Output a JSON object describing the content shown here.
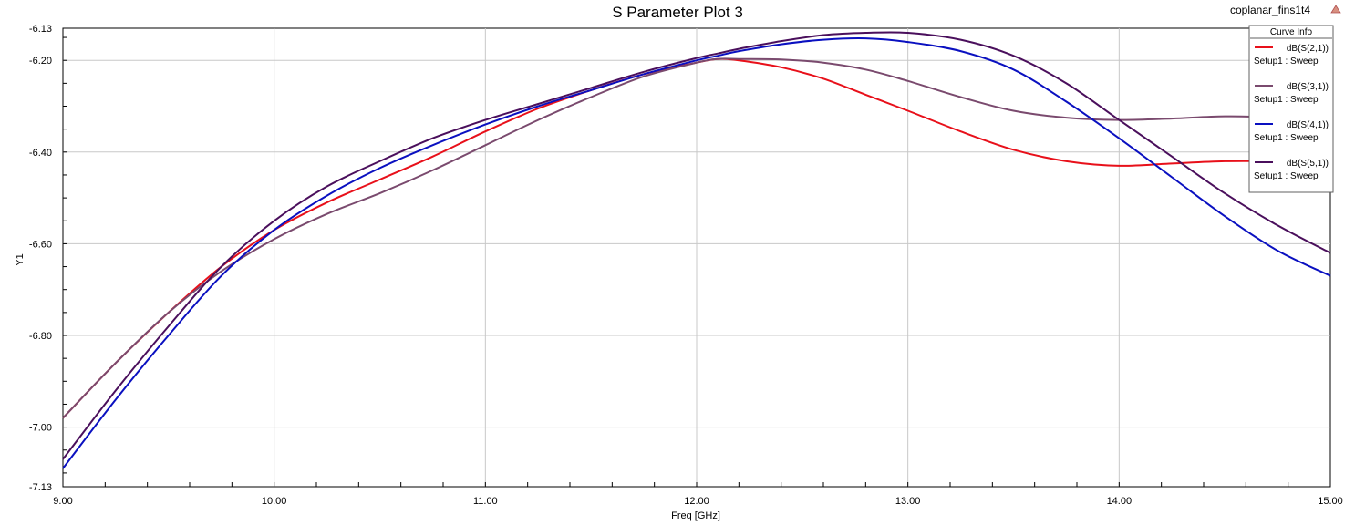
{
  "chart_data": {
    "type": "line",
    "title": "S Parameter Plot 3",
    "project_name": "coplanar_fins1t4",
    "xlabel": "Freq [GHz]",
    "ylabel": "Y1",
    "xlim": [
      9.0,
      15.0
    ],
    "ylim": [
      -7.13,
      -6.13
    ],
    "x_ticks": [
      "9.00",
      "10.00",
      "11.00",
      "12.00",
      "13.00",
      "14.00",
      "15.00"
    ],
    "y_ticks": [
      "-6.13",
      "-6.20",
      "-6.40",
      "-6.60",
      "-6.80",
      "-7.00",
      "-7.13"
    ],
    "grid": true,
    "legend": {
      "title": "Curve Info",
      "placement": "top-right"
    },
    "series": [
      {
        "name": "dB(S(2,1))",
        "sweep": "Setup1 : Sweep",
        "color": "#e8101a",
        "x": [
          9.0,
          9.25,
          9.5,
          9.75,
          10.0,
          10.25,
          10.5,
          10.75,
          11.0,
          11.25,
          11.5,
          11.75,
          12.0,
          12.1,
          12.2,
          12.4,
          12.6,
          12.8,
          13.0,
          13.25,
          13.5,
          13.75,
          14.0,
          14.25,
          14.5,
          14.75,
          15.0
        ],
        "values": [
          -6.98,
          -6.86,
          -6.75,
          -6.65,
          -6.57,
          -6.51,
          -6.46,
          -6.41,
          -6.355,
          -6.305,
          -6.265,
          -6.23,
          -6.205,
          -6.197,
          -6.2,
          -6.215,
          -6.24,
          -6.275,
          -6.31,
          -6.355,
          -6.395,
          -6.42,
          -6.43,
          -6.425,
          -6.42,
          -6.42,
          -6.42
        ]
      },
      {
        "name": "dB(S(3,1))",
        "sweep": "Setup1 : Sweep",
        "color": "#7a4a6e",
        "x": [
          9.0,
          9.25,
          9.5,
          9.75,
          10.0,
          10.25,
          10.5,
          10.75,
          11.0,
          11.25,
          11.5,
          11.75,
          12.0,
          12.1,
          12.2,
          12.4,
          12.6,
          12.8,
          13.0,
          13.25,
          13.5,
          13.75,
          14.0,
          14.25,
          14.5,
          14.75,
          15.0
        ],
        "values": [
          -6.98,
          -6.86,
          -6.75,
          -6.66,
          -6.59,
          -6.535,
          -6.49,
          -6.44,
          -6.385,
          -6.33,
          -6.28,
          -6.235,
          -6.205,
          -6.197,
          -6.197,
          -6.198,
          -6.205,
          -6.22,
          -6.245,
          -6.28,
          -6.31,
          -6.325,
          -6.33,
          -6.327,
          -6.322,
          -6.325,
          -6.335
        ]
      },
      {
        "name": "dB(S(4,1))",
        "sweep": "Setup1 : Sweep",
        "color": "#0a10c0",
        "x": [
          9.0,
          9.25,
          9.5,
          9.75,
          10.0,
          10.25,
          10.5,
          10.75,
          11.0,
          11.25,
          11.5,
          11.75,
          12.0,
          12.1,
          12.2,
          12.4,
          12.6,
          12.8,
          13.0,
          13.25,
          13.5,
          13.75,
          14.0,
          14.25,
          14.5,
          14.75,
          15.0
        ],
        "values": [
          -7.09,
          -6.94,
          -6.8,
          -6.67,
          -6.57,
          -6.495,
          -6.435,
          -6.385,
          -6.34,
          -6.3,
          -6.265,
          -6.23,
          -6.2,
          -6.19,
          -6.18,
          -6.165,
          -6.155,
          -6.152,
          -6.16,
          -6.18,
          -6.22,
          -6.29,
          -6.37,
          -6.455,
          -6.54,
          -6.615,
          -6.67
        ]
      },
      {
        "name": "dB(S(5,1))",
        "sweep": "Setup1 : Sweep",
        "color": "#4a0f5c",
        "x": [
          9.0,
          9.25,
          9.5,
          9.75,
          10.0,
          10.25,
          10.5,
          10.75,
          11.0,
          11.25,
          11.5,
          11.75,
          12.0,
          12.1,
          12.2,
          12.4,
          12.6,
          12.8,
          13.0,
          13.25,
          13.5,
          13.75,
          14.0,
          14.25,
          14.5,
          14.75,
          15.0
        ],
        "values": [
          -7.07,
          -6.92,
          -6.78,
          -6.65,
          -6.55,
          -6.475,
          -6.42,
          -6.37,
          -6.33,
          -6.295,
          -6.26,
          -6.225,
          -6.195,
          -6.185,
          -6.175,
          -6.158,
          -6.145,
          -6.14,
          -6.14,
          -6.155,
          -6.19,
          -6.25,
          -6.33,
          -6.41,
          -6.49,
          -6.56,
          -6.62
        ]
      }
    ]
  }
}
